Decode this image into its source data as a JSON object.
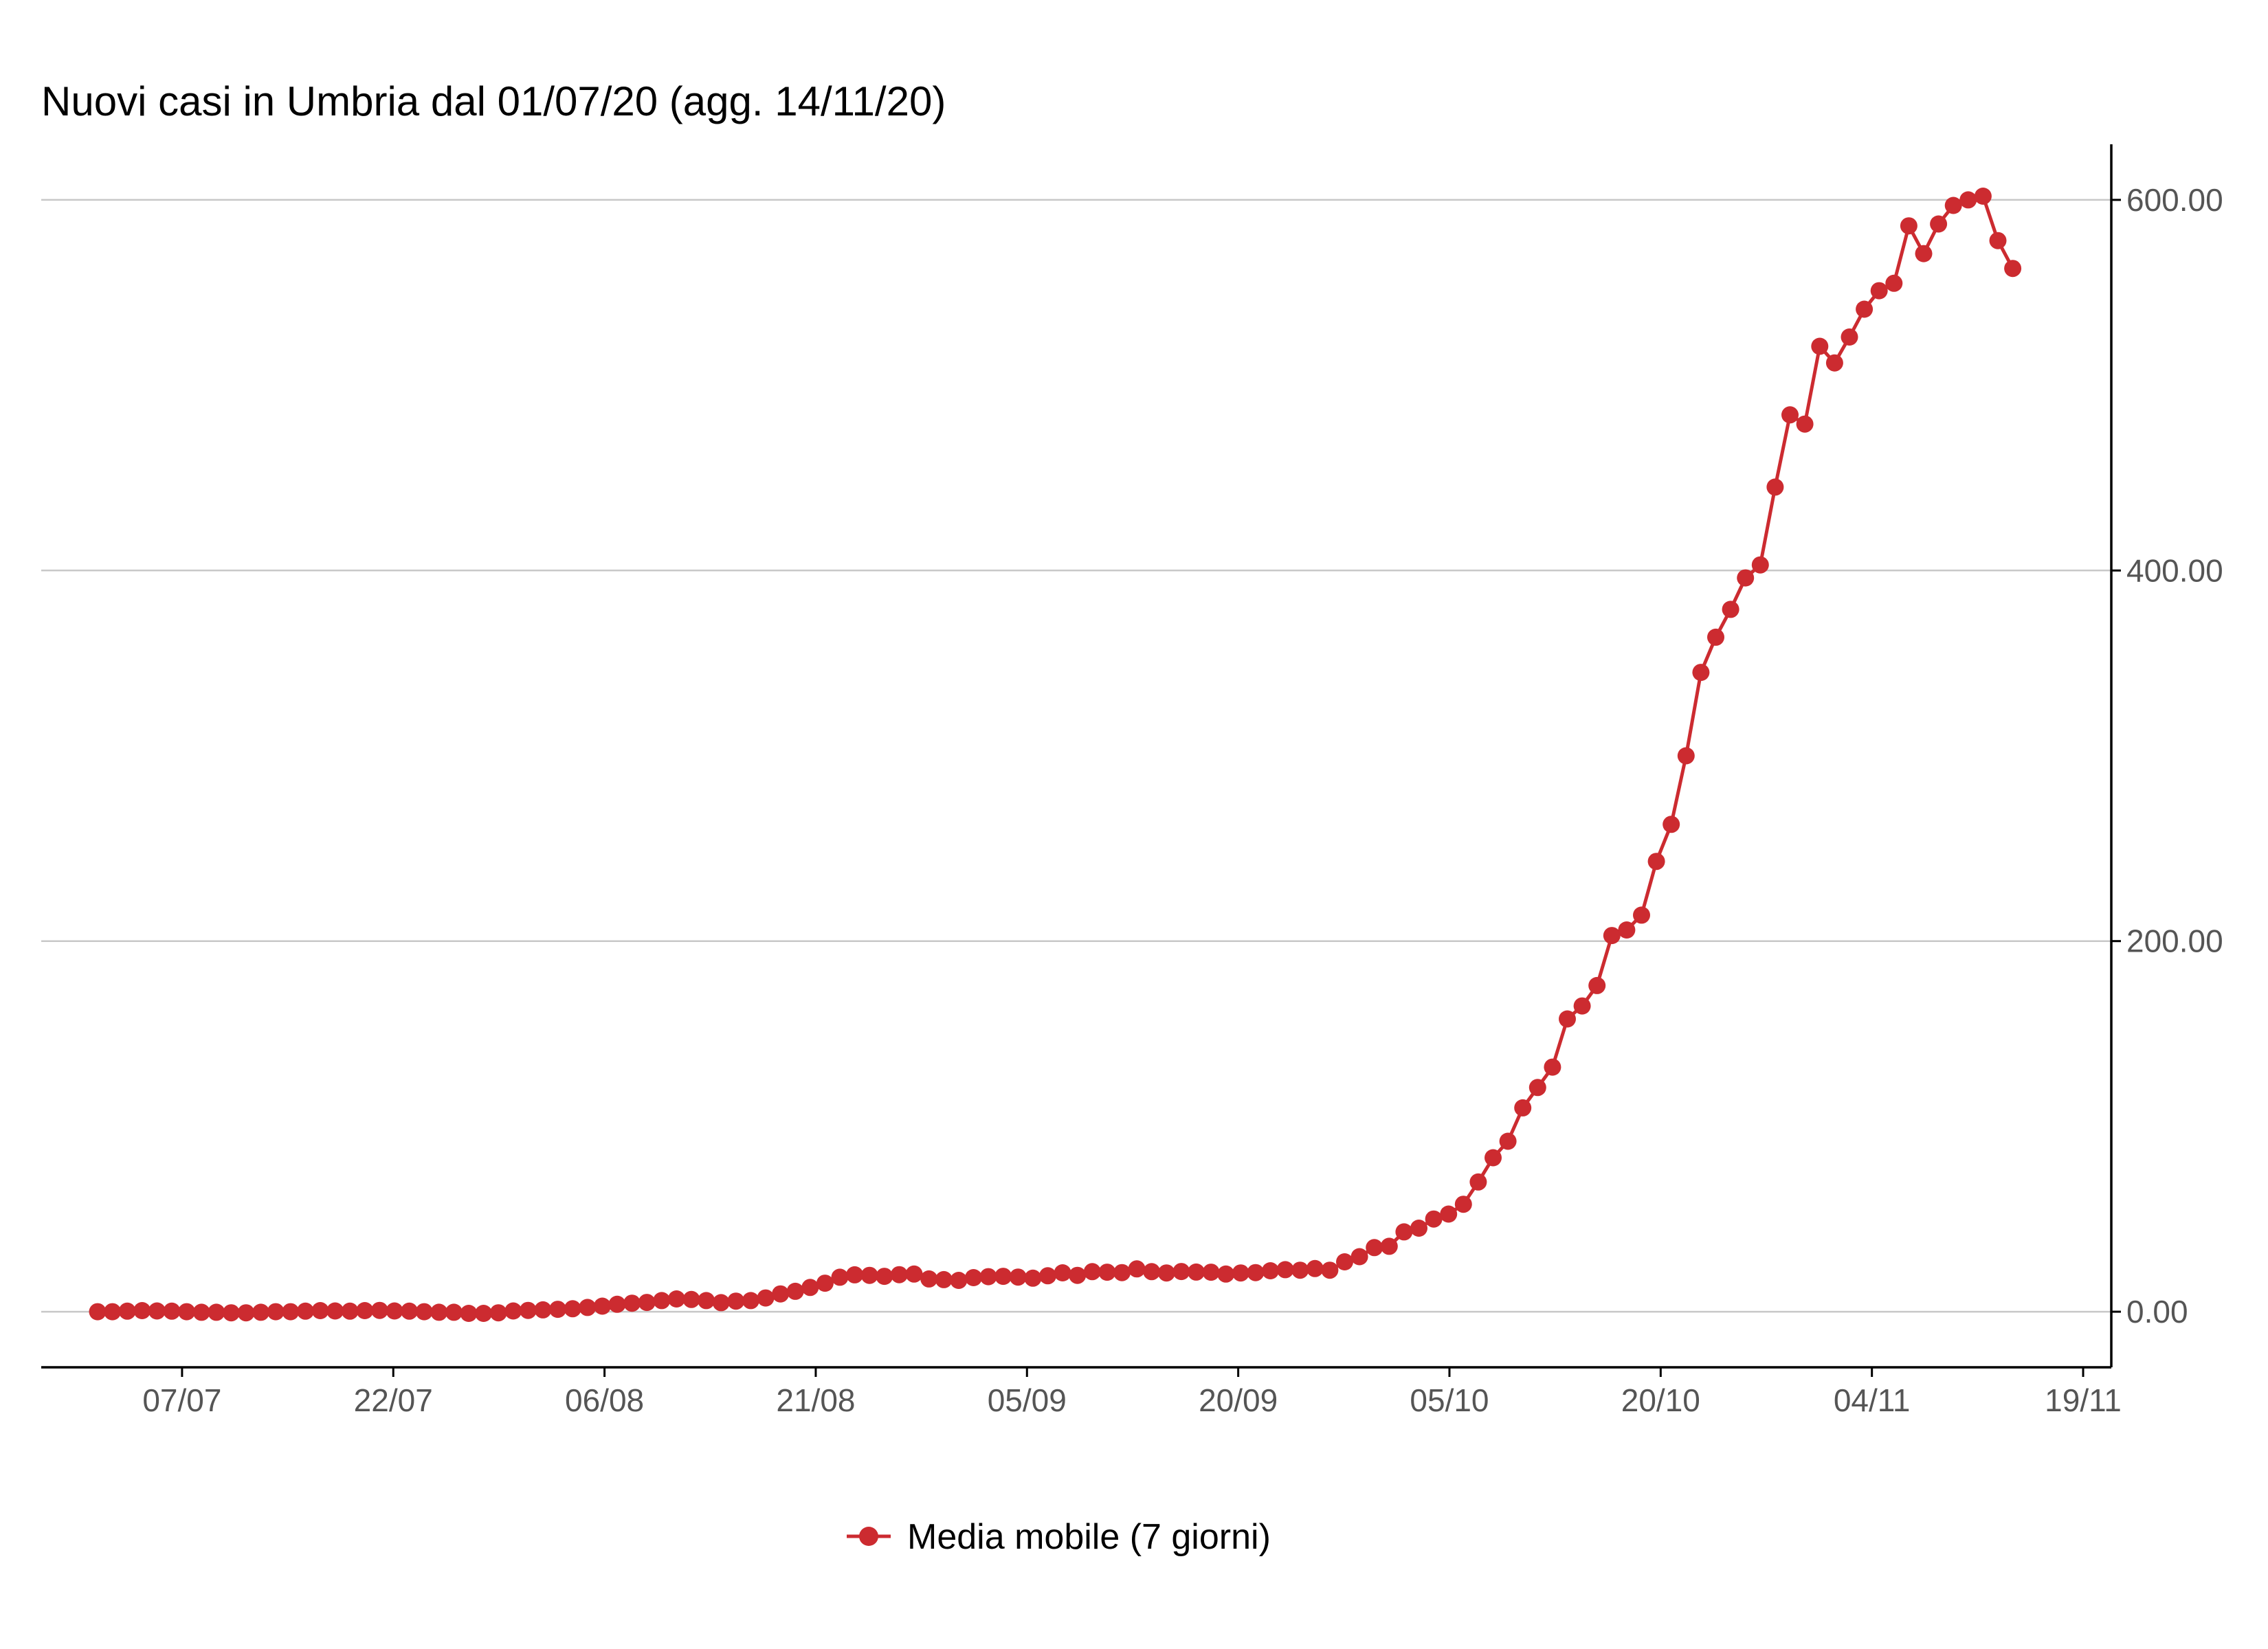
{
  "chart_data": {
    "type": "line",
    "title": "Nuovi casi in Umbria dal 01/07/20 (agg. 14/11/20)",
    "xlabel": "",
    "ylabel": "",
    "y_axis_side": "right",
    "ylim": [
      -30,
      630
    ],
    "y_ticks": [
      0,
      200,
      400,
      600
    ],
    "y_tick_labels": [
      "0.00",
      "200.00",
      "400.00",
      "600.00"
    ],
    "x_ticks": [
      "2020-07-07",
      "2020-07-22",
      "2020-08-06",
      "2020-08-21",
      "2020-09-05",
      "2020-09-20",
      "2020-10-05",
      "2020-10-20",
      "2020-11-04",
      "2020-11-19"
    ],
    "x_tick_labels": [
      "07/07",
      "22/07",
      "06/08",
      "21/08",
      "05/09",
      "20/09",
      "05/10",
      "20/10",
      "04/11",
      "19/11"
    ],
    "xlim": [
      "2020-06-27",
      "2020-11-21"
    ],
    "grid": "horizontal",
    "legend_position": "bottom",
    "color": "#cc2b30",
    "series": [
      {
        "name": "Media mobile (7 giorni)",
        "x_start": "2020-07-01",
        "x_end": "2020-11-14",
        "values": [
          0,
          0,
          0.3,
          0.6,
          0.4,
          0.3,
          0,
          -0.3,
          -0.3,
          -0.6,
          -0.6,
          -0.3,
          0,
          0,
          0.3,
          0.6,
          0.4,
          0.3,
          0.6,
          0.7,
          0.4,
          0.3,
          0,
          -0.3,
          -0.3,
          -0.9,
          -0.9,
          -0.6,
          0.4,
          0.7,
          1,
          1.3,
          1.6,
          2.3,
          3,
          4,
          4.6,
          5,
          6,
          6.9,
          6.6,
          6,
          4.9,
          5.7,
          6,
          7.4,
          9.6,
          11,
          13.1,
          15.4,
          18.6,
          19.9,
          19.6,
          19.1,
          20,
          20.3,
          17.7,
          17.3,
          16.9,
          18.4,
          18.9,
          19.1,
          18.7,
          18.1,
          19.4,
          21,
          19.6,
          21.6,
          21.3,
          21.1,
          23.1,
          21.6,
          20.9,
          21.7,
          21.4,
          21.3,
          20.3,
          20.9,
          21.1,
          22.1,
          22.7,
          22.4,
          23.3,
          22.4,
          26.9,
          29.7,
          34.6,
          35.3,
          43.1,
          45.1,
          50,
          52.7,
          58,
          70,
          83.1,
          92,
          110,
          121,
          132,
          158,
          165,
          176,
          203,
          206,
          214,
          243,
          263,
          300,
          345,
          364,
          379,
          396,
          403,
          445,
          484,
          479,
          521,
          512,
          526,
          541,
          551,
          555,
          586,
          571,
          587,
          597,
          600,
          602,
          578,
          563
        ]
      }
    ]
  }
}
